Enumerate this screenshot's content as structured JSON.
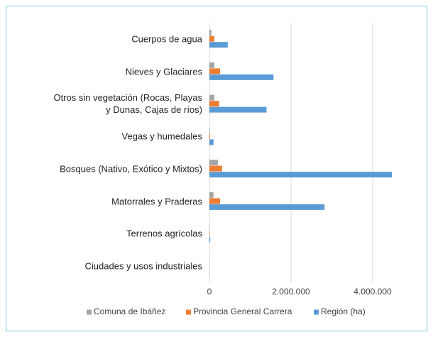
{
  "chart_data": {
    "type": "hbar",
    "categories": [
      "Cuerpos de agua",
      "Nieves y Glaciares",
      "Otros sin vegetación (Rocas, Playas y Dunas, Cajas de ríos)",
      "Vegas y humedales",
      "Bosques (Nativo, Exótico y Mixtos)",
      "Matorrales y Praderas",
      "Terrenos agrícolas",
      "Ciudades y usos industriales"
    ],
    "series": [
      {
        "name": "Comuna de Ibáñez",
        "color": "#a5a5a5",
        "values": [
          50000,
          120000,
          120000,
          10000,
          210000,
          100000,
          5000,
          2000
        ]
      },
      {
        "name": "Provincia General Carrera",
        "color": "#ed7d31",
        "values": [
          120000,
          260000,
          240000,
          15000,
          310000,
          260000,
          10000,
          3000
        ]
      },
      {
        "name": "Región (ha)",
        "color": "#5b9bd5",
        "values": [
          450000,
          1570000,
          1400000,
          100000,
          4470000,
          2820000,
          20000,
          5000
        ]
      }
    ],
    "xlim": [
      0,
      5000000
    ],
    "xticks": [
      0,
      {
        "value": 2000000,
        "label": "2.000.000"
      },
      {
        "value": 4000000,
        "label": "4.000.000"
      }
    ],
    "grid": true,
    "legend": "bottom"
  }
}
